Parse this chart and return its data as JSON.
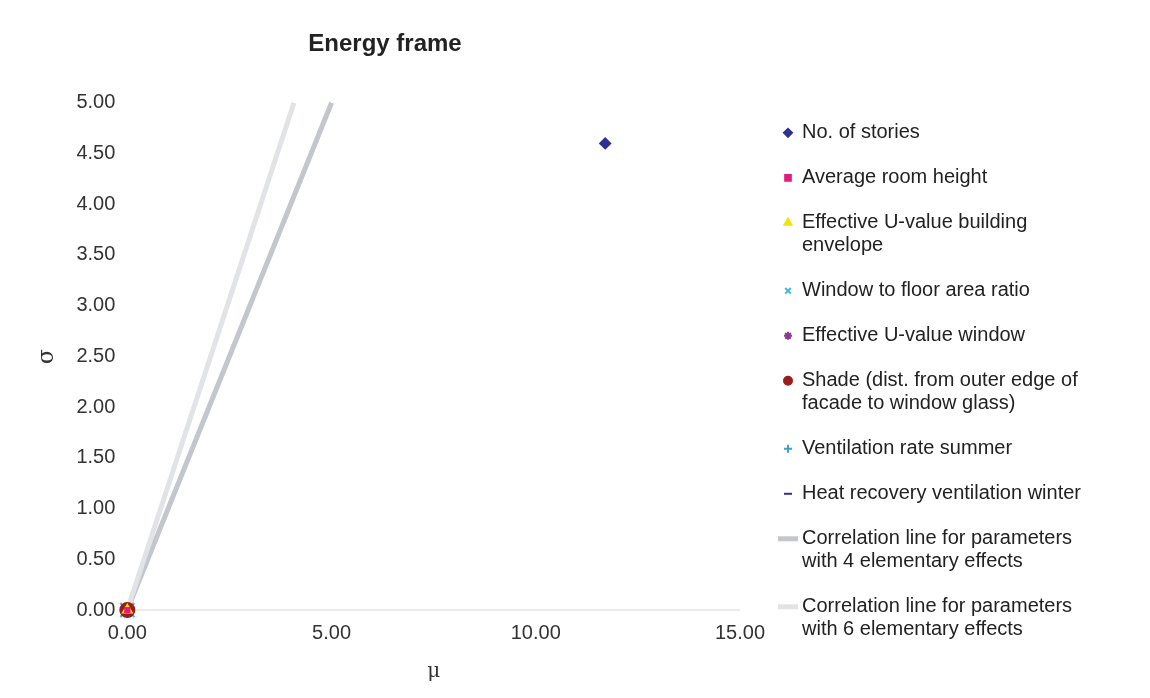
{
  "chart_data": {
    "type": "scatter",
    "title": "Energy frame",
    "xlabel": "μ",
    "ylabel": "σ",
    "xlim": [
      0,
      15
    ],
    "xticks": [
      {
        "value": 0,
        "label": "0.00"
      },
      {
        "value": 5,
        "label": "5.00"
      },
      {
        "value": 10,
        "label": "10.00"
      },
      {
        "value": 15,
        "label": "15.00"
      }
    ],
    "ylim": [
      0,
      5
    ],
    "yticks": [
      {
        "value": 0,
        "label": "0.00"
      },
      {
        "value": 0.5,
        "label": "0.50"
      },
      {
        "value": 1,
        "label": "1.00"
      },
      {
        "value": 1.5,
        "label": "1.50"
      },
      {
        "value": 2,
        "label": "2.00"
      },
      {
        "value": 2.5,
        "label": "2.50"
      },
      {
        "value": 3,
        "label": "3.00"
      },
      {
        "value": 3.5,
        "label": "3.50"
      },
      {
        "value": 4,
        "label": "4.00"
      },
      {
        "value": 4.5,
        "label": "4.50"
      },
      {
        "value": 5,
        "label": "5.00"
      }
    ],
    "grid": false,
    "legend": "right",
    "series": [
      {
        "name": "No. of stories",
        "color": "#2e3192",
        "marker": "diamond",
        "x": [
          11.7
        ],
        "values": [
          4.6
        ]
      },
      {
        "name": "Average room height",
        "color": "#e6197e",
        "marker": "square",
        "x": [
          0
        ],
        "values": [
          0
        ]
      },
      {
        "name": "Effective U-value building envelope",
        "color": "#f2e600",
        "marker": "triangle",
        "x": [
          0
        ],
        "values": [
          0
        ]
      },
      {
        "name": "Window to floor area ratio",
        "color": "#3fb8e0",
        "marker": "x",
        "x": [
          0
        ],
        "values": [
          0
        ]
      },
      {
        "name": "Effective U-value window",
        "color": "#8b3a8f",
        "marker": "star",
        "x": [
          null
        ],
        "values": [
          null
        ]
      },
      {
        "name": "Shade (dist. from outer edge of facade to window glass)",
        "color": "#9b1c1c",
        "marker": "circle",
        "x": [
          0
        ],
        "values": [
          0
        ]
      },
      {
        "name": "Ventilation rate summer",
        "color": "#3aa3c8",
        "marker": "cross",
        "x": [
          null
        ],
        "values": [
          null
        ]
      },
      {
        "name": "Heat recovery ventilation winter",
        "color": "#2e3192",
        "marker": "dash",
        "x": [
          null
        ],
        "values": [
          null
        ]
      },
      {
        "name": "Correlation line for parameters with 4 elementary effects",
        "type": "line",
        "color": "#c3c6cd",
        "marker": "none",
        "x": [
          0,
          5
        ],
        "values": [
          0,
          5
        ]
      },
      {
        "name": "Correlation line for parameters with 6 elementary effects",
        "type": "line",
        "color": "#e1e3e7",
        "marker": "none",
        "x": [
          0,
          4.08
        ],
        "values": [
          0,
          5
        ]
      }
    ]
  }
}
